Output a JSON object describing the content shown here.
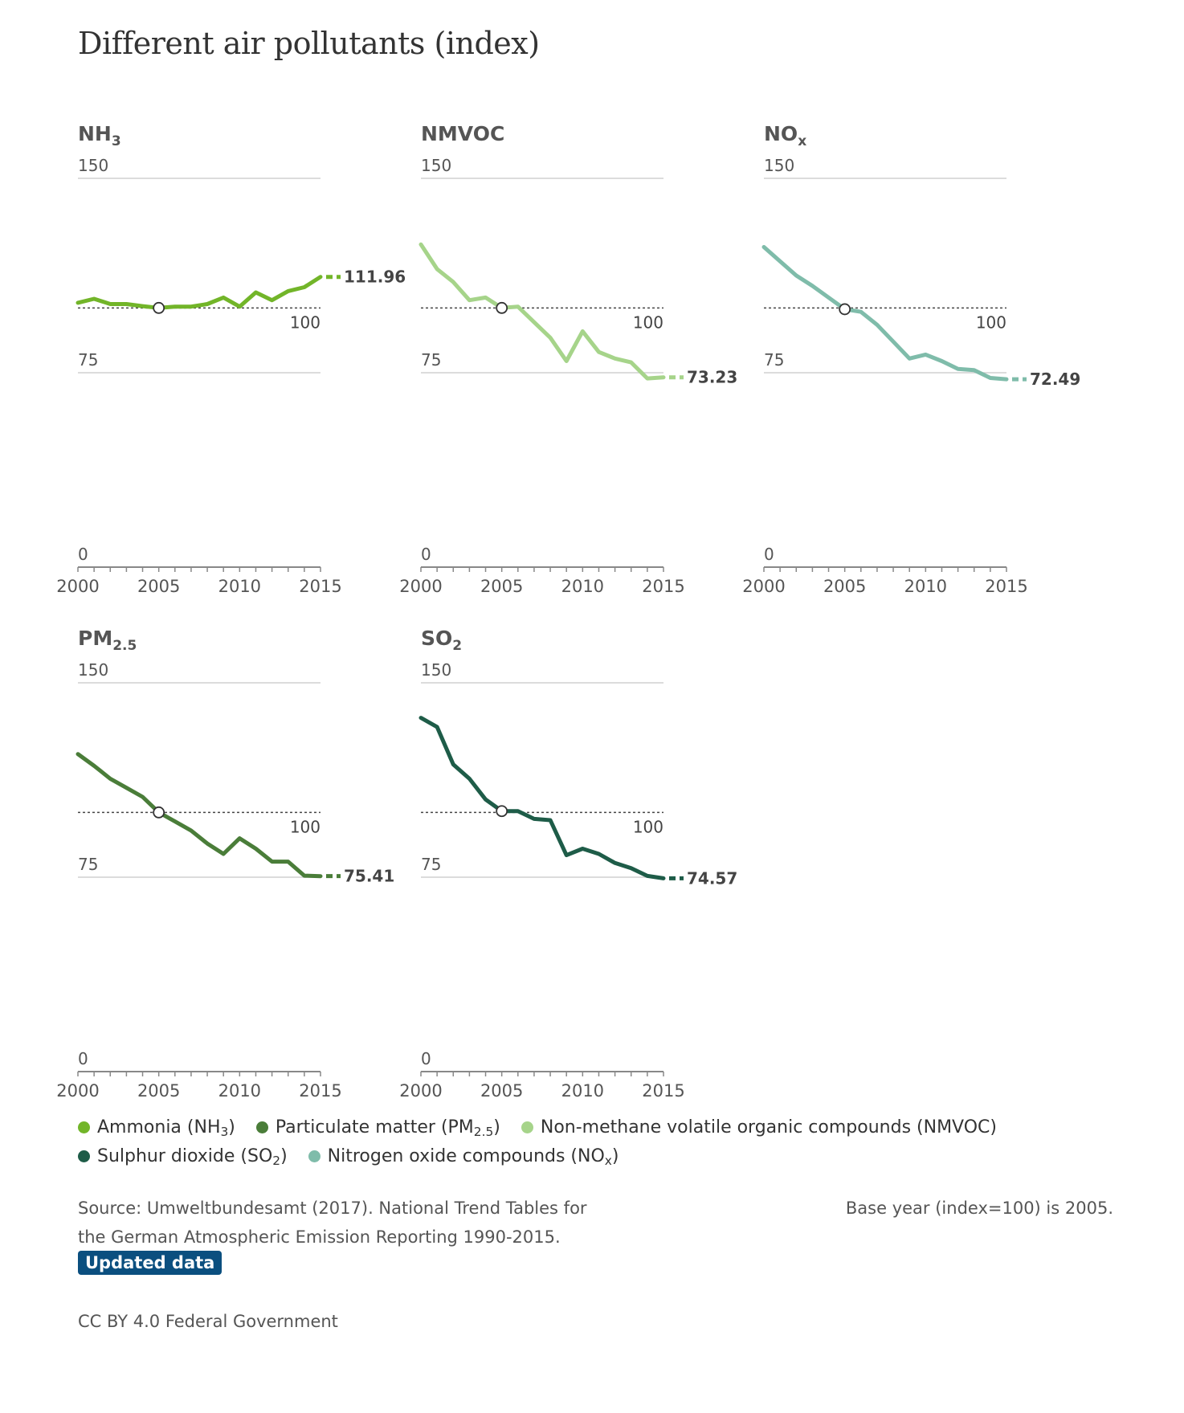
{
  "title": "Different air pollutants (index)",
  "chart_data": {
    "type": "line",
    "base_index": 100,
    "panels": [
      {
        "id": "nh3",
        "name": "NH",
        "sub": "3",
        "color": "#72b529",
        "ylim": [
          0,
          150
        ],
        "yticks": [
          "150",
          "75",
          "0"
        ],
        "base_label": "100",
        "xticks": [
          "2000",
          "2005",
          "2010",
          "2015"
        ],
        "last_label": "111.96",
        "x": [
          2000,
          2001,
          2002,
          2003,
          2004,
          2005,
          2006,
          2007,
          2008,
          2009,
          2010,
          2011,
          2012,
          2013,
          2014,
          2015
        ],
        "values": [
          102,
          103.5,
          101.5,
          101.5,
          100.7,
          100,
          100.5,
          100.5,
          101.5,
          104,
          100.5,
          106,
          103,
          106.5,
          108,
          111.96
        ]
      },
      {
        "id": "nmvoc",
        "name": "NMVOC",
        "sub": "",
        "color": "#a6d48a",
        "ylim": [
          0,
          150
        ],
        "yticks": [
          "150",
          "75",
          "0"
        ],
        "base_label": "100",
        "xticks": [
          "2000",
          "2005",
          "2010",
          "2015"
        ],
        "last_label": "73.23",
        "x": [
          2000,
          2001,
          2002,
          2003,
          2004,
          2005,
          2006,
          2007,
          2008,
          2009,
          2010,
          2011,
          2012,
          2013,
          2014,
          2015
        ],
        "values": [
          124.5,
          115,
          110,
          103,
          104,
          100,
          100.5,
          94.5,
          88.5,
          79.5,
          91,
          83,
          80.5,
          79,
          72.8,
          73.23
        ]
      },
      {
        "id": "nox",
        "name": "NO",
        "sub": "x",
        "color": "#7fbcaa",
        "ylim": [
          0,
          150
        ],
        "yticks": [
          "150",
          "75",
          "0"
        ],
        "base_label": "100",
        "xticks": [
          "2000",
          "2005",
          "2010",
          "2015"
        ],
        "last_label": "72.49",
        "x": [
          2000,
          2001,
          2002,
          2003,
          2004,
          2005,
          2006,
          2007,
          2008,
          2009,
          2010,
          2011,
          2012,
          2013,
          2014,
          2015
        ],
        "values": [
          123.5,
          118,
          112.5,
          108.5,
          104,
          99.5,
          98.5,
          93.5,
          87,
          80.5,
          82,
          79.5,
          76.5,
          76,
          73,
          72.49
        ]
      },
      {
        "id": "pm25",
        "name": "PM",
        "sub": "2.5",
        "color": "#4a7d39",
        "ylim": [
          0,
          150
        ],
        "yticks": [
          "150",
          "75",
          "0"
        ],
        "base_label": "100",
        "xticks": [
          "2000",
          "2005",
          "2010",
          "2015"
        ],
        "last_label": "75.41",
        "x": [
          2000,
          2001,
          2002,
          2003,
          2004,
          2005,
          2006,
          2007,
          2008,
          2009,
          2010,
          2011,
          2012,
          2013,
          2014,
          2015
        ],
        "values": [
          122.5,
          118,
          113,
          109.5,
          106,
          100,
          96.5,
          93,
          88,
          84,
          90,
          86,
          81,
          81,
          75.6,
          75.41
        ]
      },
      {
        "id": "so2",
        "name": "SO",
        "sub": "2",
        "color": "#1e5c48",
        "ylim": [
          0,
          150
        ],
        "yticks": [
          "150",
          "75",
          "0"
        ],
        "base_label": "100",
        "xticks": [
          "2000",
          "2005",
          "2010",
          "2015"
        ],
        "last_label": "74.57",
        "x": [
          2000,
          2001,
          2002,
          2003,
          2004,
          2005,
          2006,
          2007,
          2008,
          2009,
          2010,
          2011,
          2012,
          2013,
          2014,
          2015
        ],
        "values": [
          136.5,
          133,
          118.5,
          113,
          105,
          100.5,
          100.5,
          97.5,
          97,
          83.5,
          86,
          84,
          80.5,
          78.5,
          75.5,
          74.57
        ]
      }
    ],
    "legend": [
      [
        {
          "label": "Ammonia (NH",
          "sub": "3",
          "tail": ")",
          "color": "#72b529"
        },
        {
          "label": "Particulate matter (PM",
          "sub": "2.5",
          "tail": ")",
          "color": "#4a7d39"
        },
        {
          "label": "Non-methane volatile organic compounds (NMVOC)",
          "sub": "",
          "tail": "",
          "color": "#a6d48a"
        }
      ],
      [
        {
          "label": "Sulphur dioxide (SO",
          "sub": "2",
          "tail": ")",
          "color": "#1e5c48"
        },
        {
          "label": "Nitrogen oxide compounds (NO",
          "sub": "x",
          "tail": ")",
          "color": "#7fbcaa"
        }
      ]
    ]
  },
  "footer": {
    "source_line1": "Source: Umweltbundesamt (2017). National Trend Tables for",
    "source_line2": "the German Atmospheric Emission Reporting 1990-2015.",
    "base_note": "Base year (index=100) is 2005.",
    "updated_button": "Updated data",
    "license": "CC BY 4.0 Federal Government"
  }
}
